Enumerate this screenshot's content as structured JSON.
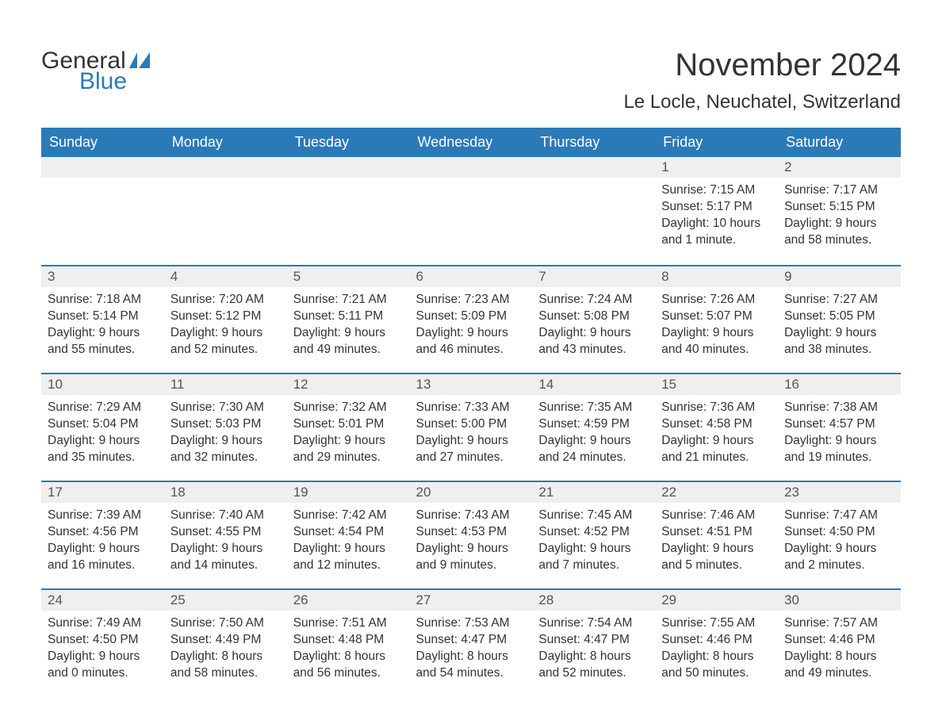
{
  "logo": {
    "part1": "General",
    "part2": "Blue",
    "flag_color": "#2a7ab9"
  },
  "title": "November 2024",
  "subtitle": "Le Locle, Neuchatel, Switzerland",
  "columns": [
    "Sunday",
    "Monday",
    "Tuesday",
    "Wednesday",
    "Thursday",
    "Friday",
    "Saturday"
  ],
  "colors": {
    "header_bg": "#2a7ab9",
    "header_text": "#ffffff",
    "daynum_bg": "#efefef",
    "daynum_border": "#2a7ab9",
    "body_text": "#333333",
    "daynum_text": "#555555",
    "logo_blue": "#2a7ab9",
    "background": "#ffffff"
  },
  "fontsize": {
    "title": 40,
    "subtitle": 24,
    "column_header": 18,
    "daynum": 17,
    "body": 15.5,
    "logo": 30
  },
  "weeks": [
    [
      null,
      null,
      null,
      null,
      null,
      {
        "n": "1",
        "sunrise": "7:15 AM",
        "sunset": "5:17 PM",
        "daylight": "10 hours and 1 minute."
      },
      {
        "n": "2",
        "sunrise": "7:17 AM",
        "sunset": "5:15 PM",
        "daylight": "9 hours and 58 minutes."
      }
    ],
    [
      {
        "n": "3",
        "sunrise": "7:18 AM",
        "sunset": "5:14 PM",
        "daylight": "9 hours and 55 minutes."
      },
      {
        "n": "4",
        "sunrise": "7:20 AM",
        "sunset": "5:12 PM",
        "daylight": "9 hours and 52 minutes."
      },
      {
        "n": "5",
        "sunrise": "7:21 AM",
        "sunset": "5:11 PM",
        "daylight": "9 hours and 49 minutes."
      },
      {
        "n": "6",
        "sunrise": "7:23 AM",
        "sunset": "5:09 PM",
        "daylight": "9 hours and 46 minutes."
      },
      {
        "n": "7",
        "sunrise": "7:24 AM",
        "sunset": "5:08 PM",
        "daylight": "9 hours and 43 minutes."
      },
      {
        "n": "8",
        "sunrise": "7:26 AM",
        "sunset": "5:07 PM",
        "daylight": "9 hours and 40 minutes."
      },
      {
        "n": "9",
        "sunrise": "7:27 AM",
        "sunset": "5:05 PM",
        "daylight": "9 hours and 38 minutes."
      }
    ],
    [
      {
        "n": "10",
        "sunrise": "7:29 AM",
        "sunset": "5:04 PM",
        "daylight": "9 hours and 35 minutes."
      },
      {
        "n": "11",
        "sunrise": "7:30 AM",
        "sunset": "5:03 PM",
        "daylight": "9 hours and 32 minutes."
      },
      {
        "n": "12",
        "sunrise": "7:32 AM",
        "sunset": "5:01 PM",
        "daylight": "9 hours and 29 minutes."
      },
      {
        "n": "13",
        "sunrise": "7:33 AM",
        "sunset": "5:00 PM",
        "daylight": "9 hours and 27 minutes."
      },
      {
        "n": "14",
        "sunrise": "7:35 AM",
        "sunset": "4:59 PM",
        "daylight": "9 hours and 24 minutes."
      },
      {
        "n": "15",
        "sunrise": "7:36 AM",
        "sunset": "4:58 PM",
        "daylight": "9 hours and 21 minutes."
      },
      {
        "n": "16",
        "sunrise": "7:38 AM",
        "sunset": "4:57 PM",
        "daylight": "9 hours and 19 minutes."
      }
    ],
    [
      {
        "n": "17",
        "sunrise": "7:39 AM",
        "sunset": "4:56 PM",
        "daylight": "9 hours and 16 minutes."
      },
      {
        "n": "18",
        "sunrise": "7:40 AM",
        "sunset": "4:55 PM",
        "daylight": "9 hours and 14 minutes."
      },
      {
        "n": "19",
        "sunrise": "7:42 AM",
        "sunset": "4:54 PM",
        "daylight": "9 hours and 12 minutes."
      },
      {
        "n": "20",
        "sunrise": "7:43 AM",
        "sunset": "4:53 PM",
        "daylight": "9 hours and 9 minutes."
      },
      {
        "n": "21",
        "sunrise": "7:45 AM",
        "sunset": "4:52 PM",
        "daylight": "9 hours and 7 minutes."
      },
      {
        "n": "22",
        "sunrise": "7:46 AM",
        "sunset": "4:51 PM",
        "daylight": "9 hours and 5 minutes."
      },
      {
        "n": "23",
        "sunrise": "7:47 AM",
        "sunset": "4:50 PM",
        "daylight": "9 hours and 2 minutes."
      }
    ],
    [
      {
        "n": "24",
        "sunrise": "7:49 AM",
        "sunset": "4:50 PM",
        "daylight": "9 hours and 0 minutes."
      },
      {
        "n": "25",
        "sunrise": "7:50 AM",
        "sunset": "4:49 PM",
        "daylight": "8 hours and 58 minutes."
      },
      {
        "n": "26",
        "sunrise": "7:51 AM",
        "sunset": "4:48 PM",
        "daylight": "8 hours and 56 minutes."
      },
      {
        "n": "27",
        "sunrise": "7:53 AM",
        "sunset": "4:47 PM",
        "daylight": "8 hours and 54 minutes."
      },
      {
        "n": "28",
        "sunrise": "7:54 AM",
        "sunset": "4:47 PM",
        "daylight": "8 hours and 52 minutes."
      },
      {
        "n": "29",
        "sunrise": "7:55 AM",
        "sunset": "4:46 PM",
        "daylight": "8 hours and 50 minutes."
      },
      {
        "n": "30",
        "sunrise": "7:57 AM",
        "sunset": "4:46 PM",
        "daylight": "8 hours and 49 minutes."
      }
    ]
  ],
  "labels": {
    "sunrise": "Sunrise:",
    "sunset": "Sunset:",
    "daylight": "Daylight:"
  }
}
